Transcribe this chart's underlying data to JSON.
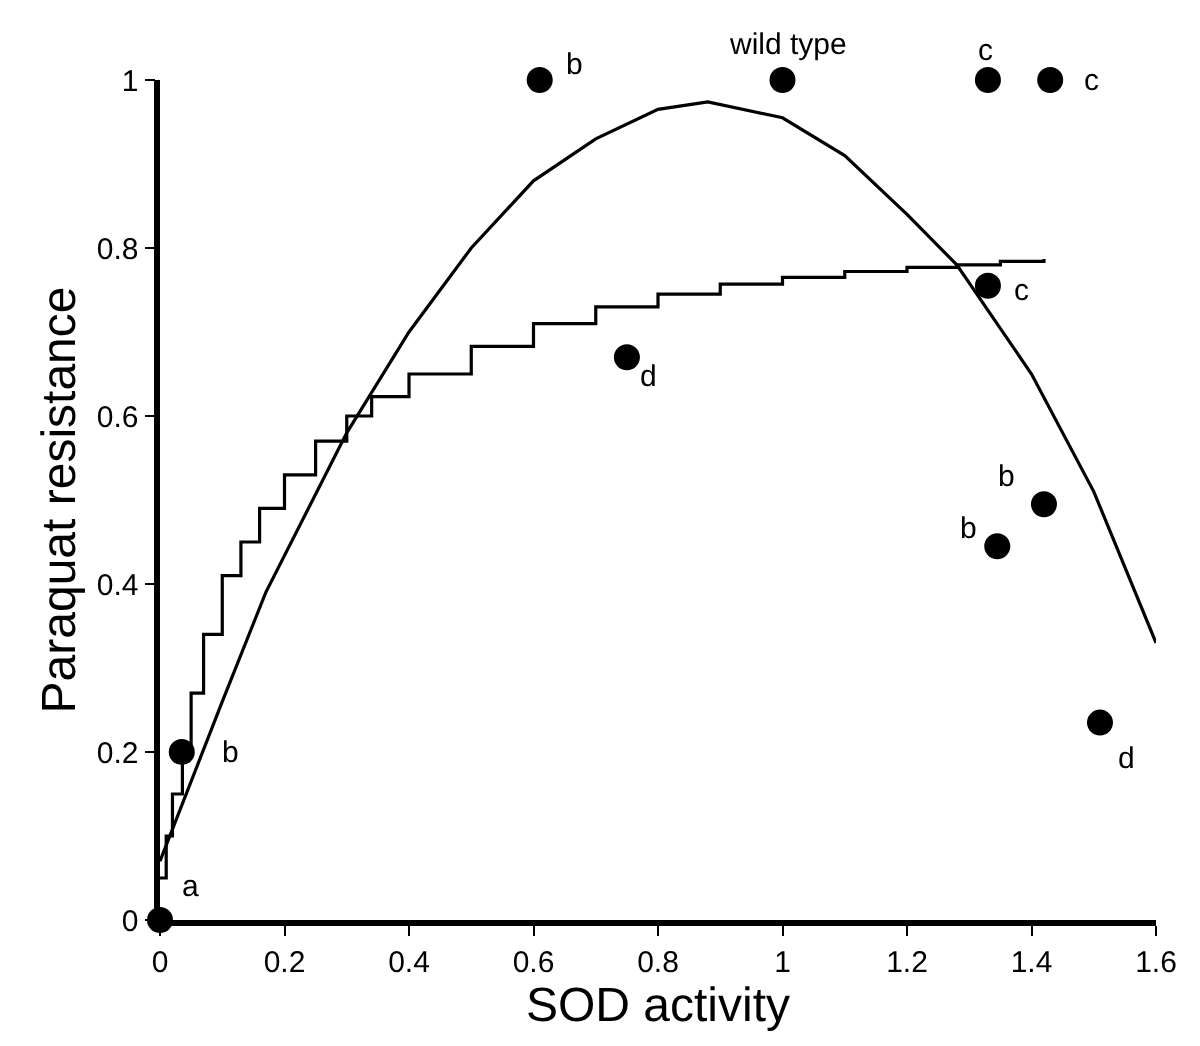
{
  "chart_data": {
    "type": "scatter",
    "xlabel": "SOD activity",
    "ylabel": "Paraquat resistance",
    "xlim": [
      0,
      1.6
    ],
    "ylim": [
      0,
      1
    ],
    "xticks": [
      0,
      0.2,
      0.4,
      0.6,
      0.8,
      1,
      1.2,
      1.4,
      1.6
    ],
    "yticks": [
      0,
      0.2,
      0.4,
      0.6,
      0.8,
      1
    ],
    "series": [
      {
        "marker": "circle",
        "color": "#000000",
        "x": [
          0,
          0.035,
          0.61,
          1.0,
          1.33,
          1.43,
          1.33,
          0.75,
          1.42,
          1.345,
          1.51
        ],
        "values": [
          0,
          0.2,
          1,
          1,
          1,
          1,
          0.755,
          0.67,
          0.495,
          0.445,
          0.235
        ]
      },
      {
        "type": "line",
        "marker": "none",
        "line_style": "solid",
        "color": "#000000",
        "x": [
          0,
          0.1,
          0.17,
          0.3,
          0.4,
          0.5,
          0.6,
          0.7,
          0.8,
          0.88,
          1.0,
          1.1,
          1.2,
          1.28,
          1.4,
          1.5,
          1.6
        ],
        "values": [
          0.07,
          0.26,
          0.39,
          0.58,
          0.7,
          0.8,
          0.88,
          0.93,
          0.965,
          0.974,
          0.955,
          0.91,
          0.84,
          0.78,
          0.65,
          0.51,
          0.33
        ]
      },
      {
        "type": "step",
        "marker": "none",
        "line_style": "solid",
        "color": "#000000",
        "x": [
          0,
          0.01,
          0.02,
          0.036,
          0.05,
          0.07,
          0.1,
          0.13,
          0.16,
          0.2,
          0.25,
          0.3,
          0.34,
          0.4,
          0.5,
          0.6,
          0.7,
          0.8,
          0.9,
          1.0,
          1.1,
          1.2,
          1.28,
          1.35,
          1.42
        ],
        "values": [
          0.05,
          0.1,
          0.15,
          0.2,
          0.27,
          0.34,
          0.41,
          0.45,
          0.49,
          0.53,
          0.57,
          0.6,
          0.623,
          0.65,
          0.683,
          0.71,
          0.73,
          0.745,
          0.757,
          0.765,
          0.772,
          0.777,
          0.78,
          0.784,
          0.787
        ]
      }
    ],
    "annotations": [
      {
        "text": "a",
        "x": 0,
        "y": 0
      },
      {
        "text": "b",
        "x": 0.035,
        "y": 0.2
      },
      {
        "text": "b",
        "x": 0.61,
        "y": 1
      },
      {
        "text": "wild type",
        "x": 1.0,
        "y": 1
      },
      {
        "text": "c",
        "x": 1.33,
        "y": 1
      },
      {
        "text": "c",
        "x": 1.43,
        "y": 1
      },
      {
        "text": "c",
        "x": 1.33,
        "y": 0.755
      },
      {
        "text": "d",
        "x": 0.75,
        "y": 0.67
      },
      {
        "text": "b",
        "x": 1.42,
        "y": 0.495
      },
      {
        "text": "b",
        "x": 1.345,
        "y": 0.445
      },
      {
        "text": "d",
        "x": 1.51,
        "y": 0.235
      }
    ]
  }
}
